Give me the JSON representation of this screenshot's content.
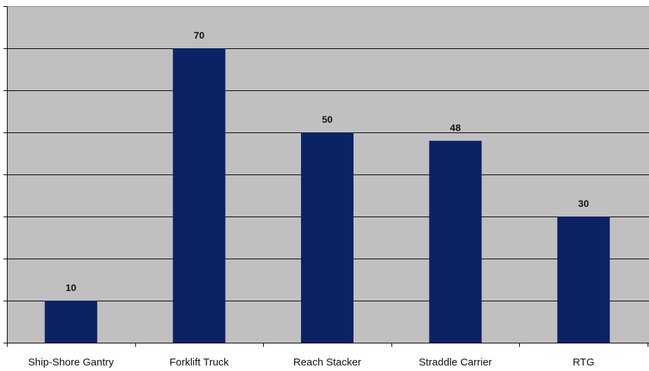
{
  "chart_data": {
    "type": "bar",
    "categories": [
      "Ship-Shore Gantry",
      "Forklift Truck",
      "Reach Stacker",
      "Straddle Carrier",
      "RTG"
    ],
    "values": [
      10,
      70,
      50,
      48,
      30
    ],
    "title": "",
    "xlabel": "",
    "ylabel": "",
    "ylim": [
      0,
      80
    ],
    "grid": true,
    "legend": "none",
    "colors": {
      "bar": "#0b2265",
      "plot_background": "#c0c0c0",
      "gridline": "#000000"
    }
  }
}
